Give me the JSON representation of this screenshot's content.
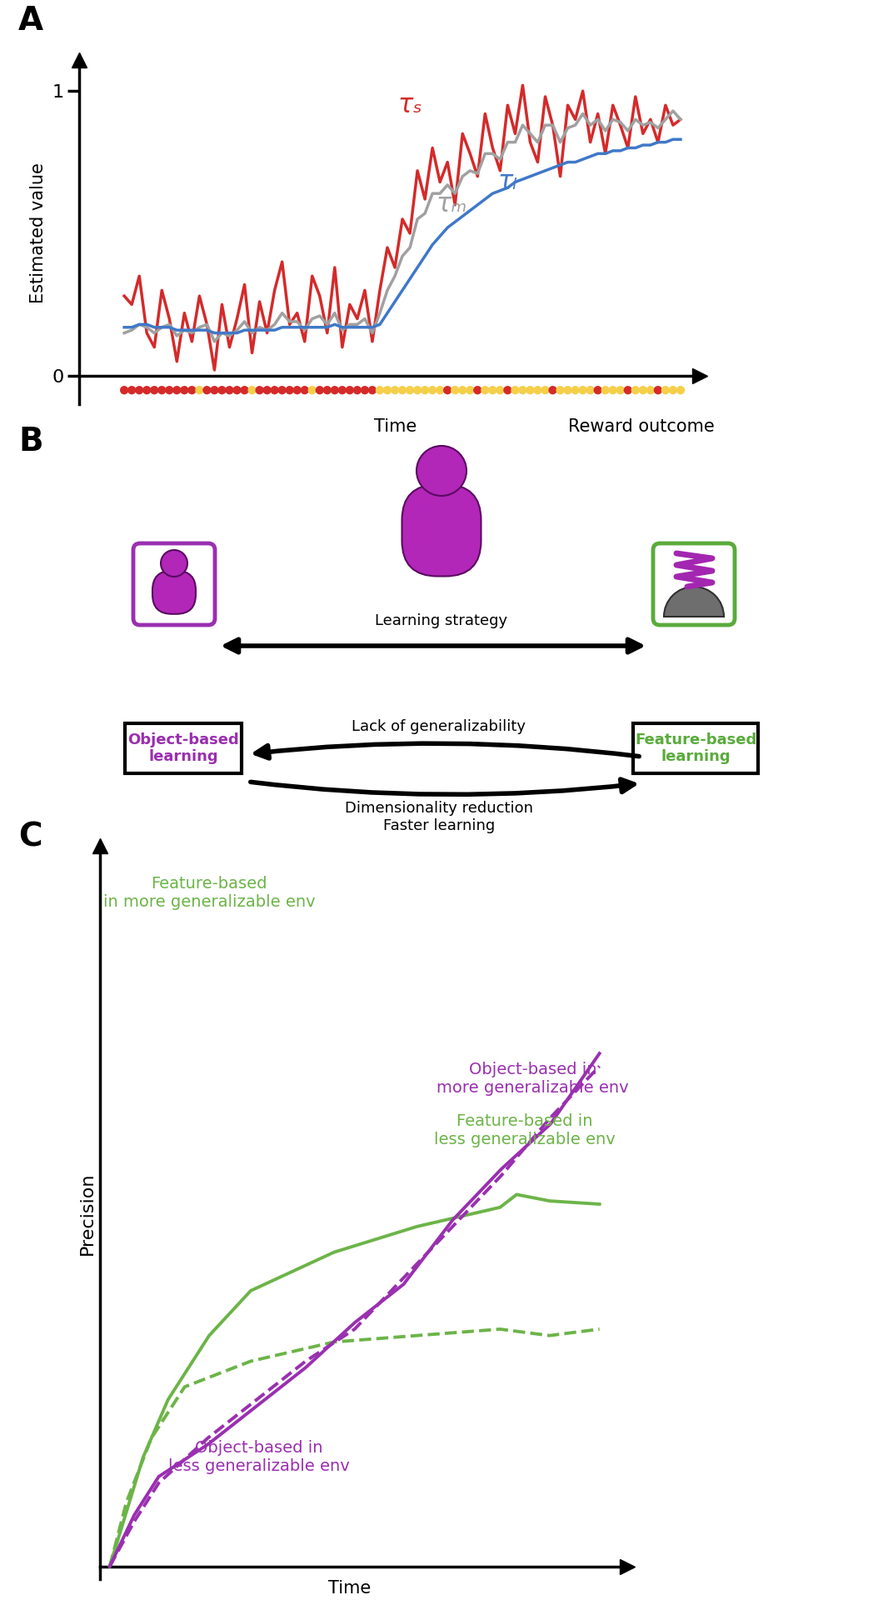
{
  "chart_data": [
    {
      "panel": "A",
      "type": "line",
      "y_label": "Estimated value",
      "x_label": "Time",
      "xlim": [
        -6,
        76
      ],
      "ylim": [
        -0.1,
        1.1
      ],
      "yticks": [
        0,
        1
      ],
      "tick_labels": "y",
      "x": [
        0,
        1,
        2,
        3,
        4,
        5,
        6,
        7,
        8,
        9,
        10,
        11,
        12,
        13,
        14,
        15,
        16,
        17,
        18,
        19,
        20,
        21,
        22,
        23,
        24,
        25,
        26,
        27,
        28,
        29,
        30,
        31,
        32,
        33,
        34,
        35,
        36,
        37,
        38,
        39,
        40,
        41,
        42,
        43,
        44,
        45,
        46,
        47,
        48,
        49,
        50,
        51,
        52,
        53,
        54,
        55,
        56,
        57,
        58,
        59,
        60,
        61,
        62,
        63,
        64,
        65,
        66,
        67,
        68,
        69,
        70,
        71,
        72,
        73,
        74
      ],
      "series": [
        {
          "name": "τₛ",
          "color": "#d42a2a",
          "line_style": "solid",
          "values": [
            0.28,
            0.25,
            0.35,
            0.15,
            0.1,
            0.3,
            0.2,
            0.05,
            0.22,
            0.12,
            0.28,
            0.18,
            0.02,
            0.25,
            0.1,
            0.2,
            0.32,
            0.08,
            0.26,
            0.15,
            0.3,
            0.4,
            0.18,
            0.22,
            0.12,
            0.35,
            0.28,
            0.15,
            0.38,
            0.1,
            0.25,
            0.2,
            0.3,
            0.12,
            0.3,
            0.45,
            0.38,
            0.55,
            0.5,
            0.72,
            0.62,
            0.8,
            0.68,
            0.75,
            0.6,
            0.85,
            0.78,
            0.7,
            0.92,
            0.8,
            0.72,
            0.95,
            0.85,
            1.02,
            0.82,
            0.75,
            0.98,
            0.88,
            0.7,
            0.95,
            0.9,
            1.0,
            0.82,
            0.92,
            0.78,
            0.95,
            0.88,
            0.8,
            0.98,
            0.85,
            0.9,
            0.82,
            0.95,
            0.88,
            0.9
          ]
        },
        {
          "name": "τₘ",
          "color": "#a0a0a0",
          "line_style": "solid",
          "values": [
            0.15,
            0.16,
            0.18,
            0.17,
            0.15,
            0.17,
            0.18,
            0.14,
            0.16,
            0.15,
            0.17,
            0.18,
            0.12,
            0.15,
            0.14,
            0.16,
            0.19,
            0.15,
            0.17,
            0.16,
            0.18,
            0.22,
            0.19,
            0.19,
            0.16,
            0.2,
            0.21,
            0.18,
            0.22,
            0.16,
            0.18,
            0.18,
            0.2,
            0.15,
            0.22,
            0.3,
            0.35,
            0.42,
            0.45,
            0.55,
            0.57,
            0.64,
            0.64,
            0.67,
            0.64,
            0.7,
            0.72,
            0.71,
            0.78,
            0.78,
            0.76,
            0.82,
            0.82,
            0.88,
            0.85,
            0.82,
            0.88,
            0.88,
            0.82,
            0.87,
            0.88,
            0.92,
            0.88,
            0.9,
            0.86,
            0.9,
            0.89,
            0.86,
            0.9,
            0.88,
            0.89,
            0.87,
            0.9,
            0.93,
            0.9
          ]
        },
        {
          "name": "τₗ",
          "color": "#3f78c8",
          "line_style": "solid",
          "values": [
            0.17,
            0.17,
            0.18,
            0.18,
            0.17,
            0.17,
            0.17,
            0.16,
            0.16,
            0.16,
            0.16,
            0.16,
            0.15,
            0.15,
            0.15,
            0.15,
            0.16,
            0.16,
            0.16,
            0.16,
            0.16,
            0.17,
            0.17,
            0.17,
            0.17,
            0.17,
            0.17,
            0.17,
            0.18,
            0.17,
            0.17,
            0.17,
            0.17,
            0.17,
            0.18,
            0.22,
            0.26,
            0.3,
            0.34,
            0.38,
            0.42,
            0.46,
            0.49,
            0.52,
            0.54,
            0.56,
            0.58,
            0.6,
            0.62,
            0.64,
            0.65,
            0.66,
            0.68,
            0.69,
            0.7,
            0.71,
            0.72,
            0.73,
            0.74,
            0.75,
            0.75,
            0.76,
            0.77,
            0.78,
            0.78,
            0.79,
            0.79,
            0.8,
            0.8,
            0.81,
            0.81,
            0.82,
            0.82,
            0.83,
            0.83
          ]
        }
      ],
      "reward_outcome": {
        "label": "Reward outcome",
        "colors": [
          "#d42a2a",
          "#f5cf4a"
        ],
        "values": [
          0,
          0,
          0,
          0,
          0,
          0,
          0,
          0,
          0,
          0,
          1,
          0,
          0,
          0,
          0,
          0,
          0,
          1,
          0,
          0,
          0,
          0,
          0,
          0,
          0,
          1,
          0,
          0,
          0,
          0,
          0,
          0,
          0,
          0,
          1,
          1,
          1,
          1,
          1,
          1,
          1,
          1,
          1,
          0,
          1,
          1,
          1,
          0,
          1,
          1,
          1,
          0,
          1,
          1,
          1,
          1,
          1,
          0,
          1,
          1,
          1,
          1,
          1,
          0,
          1,
          1,
          1,
          0,
          1,
          1,
          1,
          0,
          1,
          1,
          1
        ]
      }
    },
    {
      "panel": "C",
      "type": "line",
      "y_label": "Precision",
      "x_label": "Time",
      "xlim": [
        -0.2,
        10.5
      ],
      "ylim": [
        -0.02,
        1.12
      ],
      "tick_labels": false,
      "series": [
        {
          "name": "Feature-based\nin more generalizable env",
          "color": "#6cb448",
          "line_style": "solid",
          "x": [
            0,
            0.68,
            1.19,
            2.03,
            2.88,
            4.58,
            6.27,
            7.97,
            8.31,
            8.98,
            10
          ],
          "values": [
            0,
            0.17,
            0.26,
            0.36,
            0.43,
            0.49,
            0.53,
            0.56,
            0.58,
            0.57,
            0.565
          ]
        },
        {
          "name": "Feature-based in\nless generalizable env",
          "color": "#6cb448",
          "line_style": "dashed",
          "x": [
            0,
            0.34,
            0.85,
            1.53,
            2.88,
            4.58,
            6.27,
            7.97,
            8.98,
            10
          ],
          "values": [
            0,
            0.1,
            0.2,
            0.28,
            0.32,
            0.35,
            0.36,
            0.37,
            0.36,
            0.37
          ]
        },
        {
          "name": "Object-based in\nmore generalizable env",
          "color": "#9a2fb0",
          "line_style": "solid",
          "x": [
            0,
            0.5,
            1.0,
            2.0,
            3.0,
            4.0,
            5.0,
            6.0,
            7.0,
            8.0,
            9.0,
            10.0
          ],
          "values": [
            0,
            0.08,
            0.14,
            0.19,
            0.25,
            0.31,
            0.38,
            0.44,
            0.54,
            0.62,
            0.69,
            0.8
          ]
        },
        {
          "name": "Object-based in\nless generalizable env",
          "color": "#9a2fb0",
          "line_style": "dashed",
          "x": [
            0,
            0.5,
            1.0,
            2.0,
            3.0,
            4.0,
            5.0,
            6.0,
            7.0,
            8.0,
            9.0,
            10.0
          ],
          "values": [
            0,
            0.07,
            0.13,
            0.2,
            0.26,
            0.32,
            0.37,
            0.45,
            0.53,
            0.61,
            0.7,
            0.78
          ]
        }
      ]
    }
  ],
  "diagram": {
    "panel": "B",
    "center_label": "Learning strategy",
    "left_node": {
      "label": "Object-based\nlearning",
      "color": "#9a2fb0"
    },
    "right_node": {
      "label": "Feature-based\nlearning",
      "color": "#5aab3c"
    },
    "to_left": [
      "Lack of generalizability"
    ],
    "to_right": [
      "Dimensionality reduction",
      "Faster learning"
    ]
  }
}
